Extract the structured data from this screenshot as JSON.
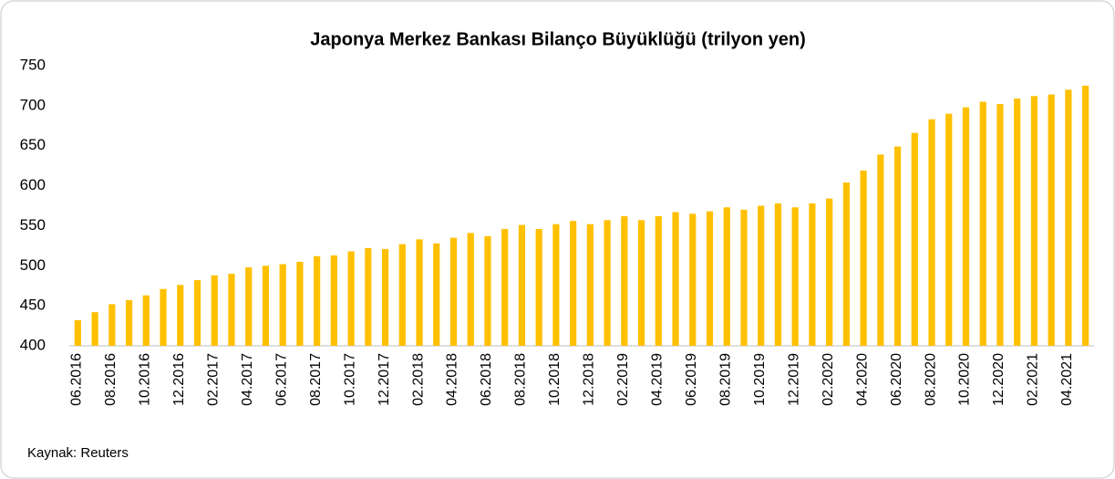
{
  "chart_data": {
    "type": "bar",
    "title": "Japonya Merkez Bankası Bilanço Büyüklüğü (trilyon yen)",
    "source": "Kaynak: Reuters",
    "categories": [
      "06.2016",
      null,
      "08.2016",
      null,
      "10.2016",
      null,
      "12.2016",
      null,
      "02.2017",
      null,
      "04.2017",
      null,
      "06.2017",
      null,
      "08.2017",
      null,
      "10.2017",
      null,
      "12.2017",
      null,
      "02.2018",
      null,
      "04.2018",
      null,
      "06.2018",
      null,
      "08.2018",
      null,
      "10.2018",
      null,
      "12.2018",
      null,
      "02.2019",
      null,
      "04.2019",
      null,
      "06.2019",
      null,
      "08.2019",
      null,
      "10.2019",
      null,
      "12.2019",
      null,
      "02.2020",
      null,
      "04.2020",
      null,
      "06.2020",
      null,
      "08.2020",
      null,
      "10.2020",
      null,
      "12.2020",
      null,
      "02.2021",
      null,
      "04.2021",
      null
    ],
    "values": [
      432,
      442,
      452,
      457,
      463,
      471,
      476,
      482,
      488,
      490,
      498,
      500,
      502,
      505,
      512,
      513,
      518,
      522,
      521,
      527,
      533,
      528,
      535,
      541,
      537,
      546,
      551,
      546,
      552,
      556,
      552,
      557,
      562,
      557,
      562,
      567,
      565,
      568,
      573,
      570,
      575,
      578,
      573,
      578,
      584,
      604,
      619,
      639,
      649,
      666,
      683,
      690,
      698,
      705,
      702,
      709,
      712,
      714,
      720,
      725
    ],
    "color": "#ffc000",
    "ylim": [
      400,
      750
    ],
    "yticks": [
      400,
      450,
      500,
      550,
      600,
      650,
      700,
      750
    ],
    "grid": false
  }
}
